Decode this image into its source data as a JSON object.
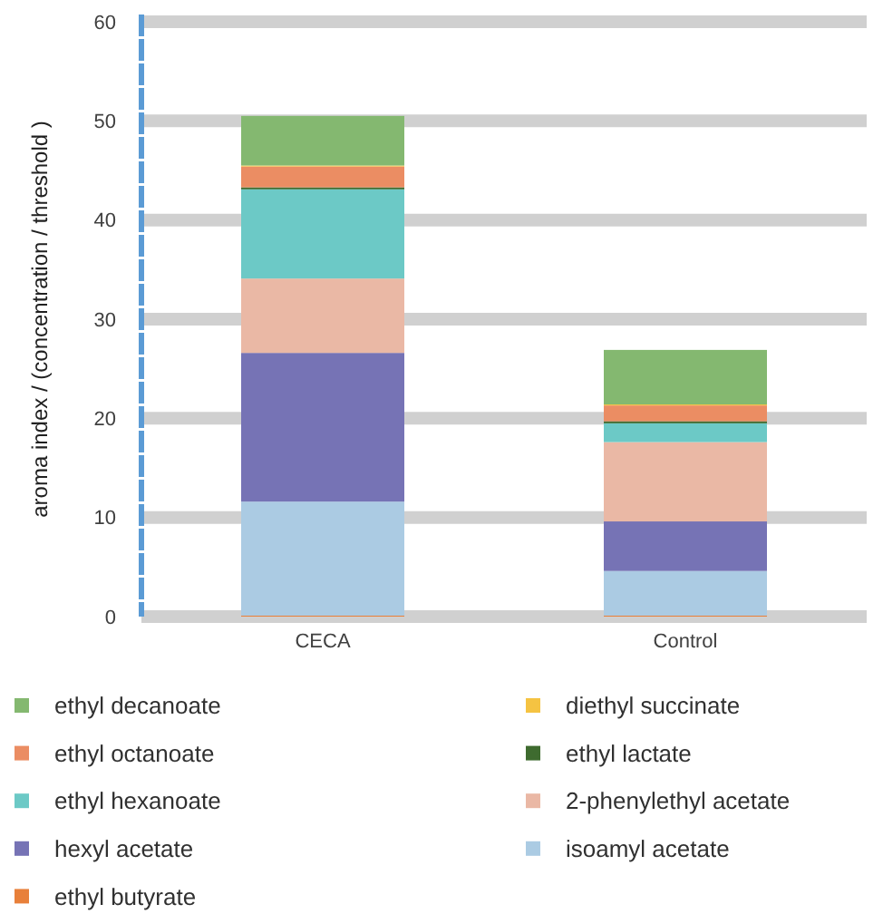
{
  "chart_data": {
    "type": "bar",
    "stacked": true,
    "ylabel": "aroma index / (concentration / threshold )",
    "categories": [
      "CECA",
      "Control"
    ],
    "ylim": [
      0,
      60
    ],
    "yticks": [
      0,
      10,
      20,
      30,
      40,
      50,
      60
    ],
    "grid": "y",
    "legend": "bottom",
    "series": [
      {
        "name": "ethyl butyrate",
        "color": "#e8803a",
        "values": [
          0.1,
          0.1
        ]
      },
      {
        "name": "isoamyl acetate",
        "color": "#abcbe3",
        "values": [
          11.5,
          4.5
        ]
      },
      {
        "name": "hexyl acetate",
        "color": "#7673b5",
        "values": [
          15.0,
          5.0
        ]
      },
      {
        "name": "2-phenylethyl acetate",
        "color": "#eab8a5",
        "values": [
          7.5,
          8.0
        ]
      },
      {
        "name": "ethyl hexanoate",
        "color": "#6cc9c6",
        "values": [
          9.0,
          1.9
        ]
      },
      {
        "name": "ethyl lactate",
        "color": "#3e6b2f",
        "values": [
          0.2,
          0.2
        ]
      },
      {
        "name": "ethyl octanoate",
        "color": "#eb8d63",
        "values": [
          2.1,
          1.6
        ]
      },
      {
        "name": "diethyl succinate",
        "color": "#f5c342",
        "values": [
          0.1,
          0.1
        ]
      },
      {
        "name": "ethyl decanoate",
        "color": "#84b870",
        "values": [
          5.0,
          5.5
        ]
      }
    ]
  }
}
